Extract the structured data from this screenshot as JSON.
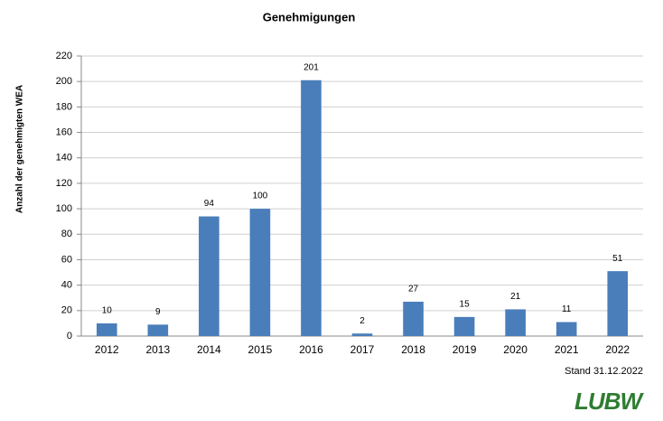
{
  "chart_data": {
    "type": "bar",
    "title": "Genehmigungen",
    "y_label": "Anzahl der genehmigten WEA",
    "categories": [
      "2012",
      "2013",
      "2014",
      "2015",
      "2016",
      "2017",
      "2018",
      "2019",
      "2020",
      "2021",
      "2022"
    ],
    "values": [
      10,
      9,
      94,
      100,
      201,
      2,
      27,
      15,
      21,
      11,
      51
    ],
    "color": "#4a7ebb",
    "ylim": [
      0,
      220
    ],
    "yticks": [
      0,
      20,
      40,
      60,
      80,
      100,
      120,
      140,
      160,
      180,
      200,
      220
    ],
    "grid": true,
    "annotation": "Stand 31.12.2022",
    "logo": "LUBW"
  }
}
